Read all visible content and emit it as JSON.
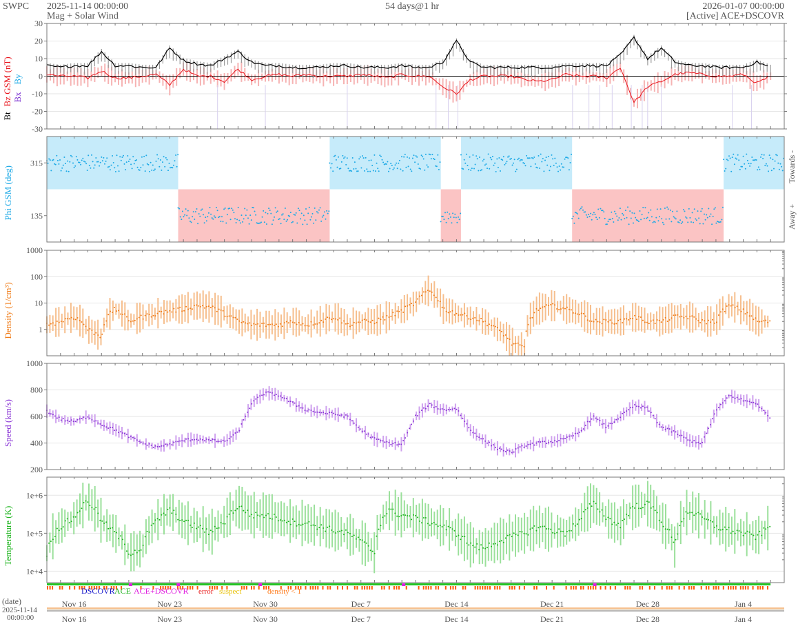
{
  "header": {
    "org": "SWPC",
    "start_time": "2025-11-14 00:00:00",
    "subtitle": "Mag + Solar Wind",
    "span": "54 days@1 hr",
    "end_time": "2026-01-07 00:00:00",
    "status": "[Active] ACE+DSCOVR"
  },
  "colors": {
    "bt": "#000000",
    "bz": "#e8141c",
    "bx": "#7b2fd0",
    "by": "#1ca9e6",
    "phi": "#1ca9e6",
    "towards_fill": "#c6ebfa",
    "away_fill": "#fbc4c4",
    "density": "#f07d1a",
    "density_band": "#f6bf8e",
    "speed": "#8a35d6",
    "speed_band": "#cfa2ee",
    "temperature": "#1fb51f",
    "temperature_band": "#9be09b",
    "status_green": "#22c322",
    "status_orange": "#ff5a00",
    "dscovr": "#1a1acc",
    "ace": "#22b322",
    "ace_dscovr": "#e020e0",
    "error": "#e81818",
    "suspect": "#e8c000",
    "density_low": "#ff7a1a"
  },
  "chart_data": [
    {
      "type": "line",
      "panel": "mag",
      "ylabel_parts": [
        "Bt",
        "Bz GSM (nT)",
        "Bx",
        "By"
      ],
      "ylim": [
        -30,
        30
      ],
      "yticks": [
        -30,
        -20,
        -10,
        0,
        10,
        20,
        30
      ],
      "series": [
        {
          "name": "Bt",
          "x": [
            0,
            1,
            2,
            3,
            4,
            5,
            6,
            7,
            8,
            9,
            10,
            11,
            12,
            13,
            14,
            15,
            16,
            17,
            18,
            19,
            20,
            21,
            22,
            23,
            24,
            25,
            26,
            27,
            28,
            29,
            30,
            31,
            32,
            33,
            34,
            35,
            36,
            37,
            38,
            39,
            40,
            41,
            42,
            43,
            44,
            45,
            46,
            47,
            48,
            49,
            50,
            51,
            52,
            53,
            54
          ],
          "values": [
            6,
            5,
            6,
            6,
            14,
            6,
            6,
            5,
            5,
            16,
            9,
            7,
            6,
            10,
            14,
            8,
            6,
            6,
            5,
            5,
            5,
            6,
            6,
            5,
            5,
            5,
            6,
            5,
            5,
            8,
            20,
            8,
            5,
            5,
            5,
            5,
            5,
            5,
            6,
            6,
            6,
            6,
            12,
            22,
            10,
            16,
            8,
            6,
            6,
            5,
            5,
            5,
            8,
            5,
            5
          ]
        },
        {
          "name": "Bz",
          "x": [
            0,
            1,
            2,
            3,
            4,
            5,
            6,
            7,
            8,
            9,
            10,
            11,
            12,
            13,
            14,
            15,
            16,
            17,
            18,
            19,
            20,
            21,
            22,
            23,
            24,
            25,
            26,
            27,
            28,
            29,
            30,
            31,
            32,
            33,
            34,
            35,
            36,
            37,
            38,
            39,
            40,
            41,
            42,
            43,
            44,
            45,
            46,
            47,
            48,
            49,
            50,
            51,
            52,
            53,
            54
          ],
          "values": [
            1,
            0,
            0,
            -1,
            3,
            -1,
            -1,
            0,
            1,
            -5,
            4,
            0,
            0,
            -3,
            4,
            -2,
            0,
            1,
            0,
            1,
            0,
            0,
            0,
            1,
            0,
            -1,
            1,
            0,
            0,
            -6,
            -10,
            -2,
            0,
            0,
            0,
            -2,
            -3,
            -2,
            1,
            0,
            0,
            -1,
            5,
            -15,
            -6,
            -3,
            1,
            2,
            1,
            0,
            0,
            1,
            -4,
            0,
            1
          ]
        }
      ]
    },
    {
      "type": "scatter",
      "panel": "phi",
      "ylabel": "Phi GSM (deg)",
      "ylim": [
        45,
        405
      ],
      "yticks": [
        135,
        315
      ],
      "right_labels": [
        "Towards -",
        "Away +"
      ],
      "sector_ranges": [
        {
          "x0": 0,
          "x1": 13,
          "sector": "towards"
        },
        {
          "x0": 13,
          "x1": 28,
          "sector": "away"
        },
        {
          "x0": 28,
          "x1": 39,
          "sector": "towards"
        },
        {
          "x0": 39,
          "x1": 41,
          "sector": "away"
        },
        {
          "x0": 41,
          "x1": 52,
          "sector": "towards"
        },
        {
          "x0": 52,
          "x1": 67,
          "sector": "away"
        },
        {
          "x0": 67,
          "x1": 73,
          "sector": "towards"
        }
      ]
    },
    {
      "type": "line",
      "panel": "density",
      "scale": "log",
      "ylabel": "Density (1/cm³)",
      "ylim": [
        0.1,
        1000
      ],
      "yticks": [
        1,
        10,
        100,
        1000
      ],
      "x": [
        0,
        1,
        2,
        3,
        4,
        5,
        6,
        7,
        8,
        9,
        10,
        11,
        12,
        13,
        14,
        15,
        16,
        17,
        18,
        19,
        20,
        21,
        22,
        23,
        24,
        25,
        26,
        27,
        28,
        29,
        30,
        31,
        32,
        33,
        34,
        35,
        36,
        37,
        38,
        39,
        40,
        41,
        42,
        43,
        44,
        45,
        46,
        47,
        48,
        49,
        50,
        51,
        52,
        53,
        54
      ],
      "values": [
        1.5,
        2,
        3,
        1,
        0.5,
        6,
        2,
        3,
        4,
        5,
        6,
        8,
        7,
        4,
        2,
        1.5,
        1.5,
        1.5,
        2,
        1.5,
        2,
        3,
        1.5,
        2,
        2,
        3,
        5,
        10,
        30,
        6,
        4,
        3,
        2,
        1,
        0.3,
        0.2,
        6,
        8,
        6,
        4,
        2,
        2,
        2,
        3,
        2,
        2,
        3,
        3,
        2,
        2,
        8,
        5,
        2,
        2,
        3
      ]
    },
    {
      "type": "line",
      "panel": "speed",
      "ylabel": "Speed (km/s)",
      "ylim": [
        200,
        1000
      ],
      "yticks": [
        200,
        400,
        600,
        800,
        1000
      ],
      "x": [
        0,
        1,
        2,
        3,
        4,
        5,
        6,
        7,
        8,
        9,
        10,
        11,
        12,
        13,
        14,
        15,
        16,
        17,
        18,
        19,
        20,
        21,
        22,
        23,
        24,
        25,
        26,
        27,
        28,
        29,
        30,
        31,
        32,
        33,
        34,
        35,
        36,
        37,
        38,
        39,
        40,
        41,
        42,
        43,
        44,
        45,
        46,
        47,
        48,
        49,
        50,
        51,
        52,
        53,
        54
      ],
      "values": [
        640,
        580,
        560,
        600,
        540,
        500,
        450,
        400,
        370,
        390,
        420,
        430,
        420,
        410,
        480,
        700,
        780,
        760,
        700,
        650,
        630,
        620,
        600,
        500,
        430,
        400,
        390,
        600,
        690,
        650,
        660,
        500,
        420,
        360,
        330,
        380,
        400,
        410,
        430,
        480,
        600,
        520,
        600,
        680,
        660,
        520,
        480,
        420,
        400,
        640,
        760,
        720,
        700,
        580,
        430
      ]
    },
    {
      "type": "line",
      "panel": "temperature",
      "scale": "log",
      "ylabel": "Temperature (K)",
      "ylim": [
        5000,
        3000000
      ],
      "ytick_labels": [
        "1e+4",
        "1e+5",
        "1e+6"
      ],
      "x": [
        0,
        1,
        2,
        3,
        4,
        5,
        6,
        7,
        8,
        9,
        10,
        11,
        12,
        13,
        14,
        15,
        16,
        17,
        18,
        19,
        20,
        21,
        22,
        23,
        24,
        25,
        26,
        27,
        28,
        29,
        30,
        31,
        32,
        33,
        34,
        35,
        36,
        37,
        38,
        39,
        40,
        41,
        42,
        43,
        44,
        45,
        46,
        47,
        48,
        49,
        50,
        51,
        52,
        53,
        54
      ],
      "values": [
        30000,
        150000,
        250000,
        700000,
        200000,
        100000,
        30000,
        40000,
        200000,
        400000,
        200000,
        150000,
        100000,
        200000,
        500000,
        300000,
        300000,
        250000,
        200000,
        180000,
        150000,
        120000,
        100000,
        60000,
        30000,
        400000,
        300000,
        250000,
        200000,
        150000,
        100000,
        50000,
        40000,
        60000,
        80000,
        100000,
        150000,
        120000,
        100000,
        200000,
        600000,
        250000,
        150000,
        500000,
        600000,
        200000,
        40000,
        400000,
        250000,
        150000,
        120000,
        100000,
        80000,
        150000,
        100000
      ]
    },
    {
      "type": "table",
      "panel": "source",
      "legend": [
        "DSCOVR",
        "ACE",
        "ACE+DSCOVR",
        "error",
        "suspect",
        "density < 1"
      ]
    },
    {
      "type": "table",
      "panel": "time-axis",
      "xlabel": "(date)",
      "x_start_label": [
        "2025-11-14",
        "00:00:00"
      ],
      "xticks": [
        "Nov 16",
        "Nov 23",
        "Nov 30",
        "Dec 7",
        "Dec 14",
        "Dec 21",
        "Dec 28",
        "Jan 4"
      ],
      "xtick_days": [
        2,
        9,
        16,
        23,
        30,
        37,
        44,
        51
      ],
      "xlim_days": [
        0,
        54
      ]
    }
  ]
}
